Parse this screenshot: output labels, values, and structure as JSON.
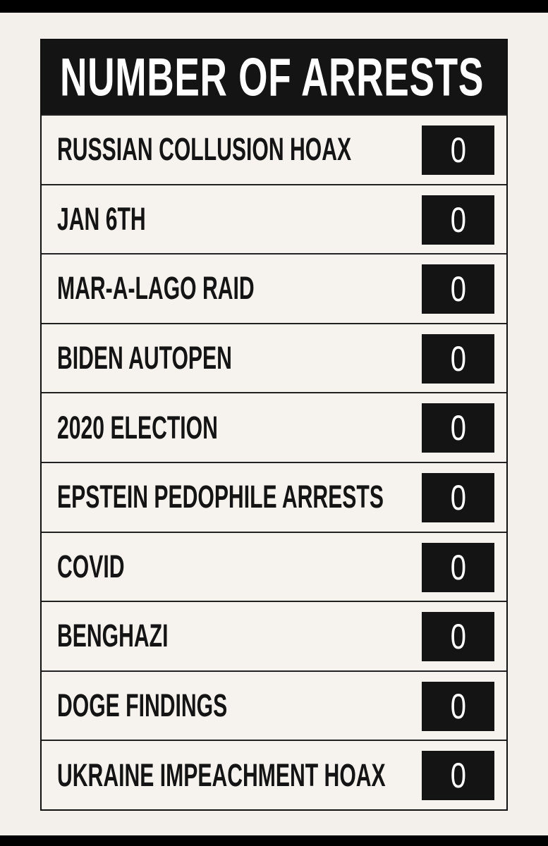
{
  "table": {
    "title": "NUMBER OF ARRESTS",
    "rows": [
      [
        "RUSSIAN COLLUSION HOAX",
        0
      ],
      [
        "JAN 6TH",
        0
      ],
      [
        "MAR-A-LAGO RAID",
        0
      ],
      [
        "BIDEN AUTOPEN",
        0
      ],
      [
        "2020 ELECTION",
        0
      ],
      [
        "EPSTEIN PEDOPHILE ARRESTS",
        0
      ],
      [
        "COVID",
        0
      ],
      [
        "BENGHAZI",
        0
      ],
      [
        "DOGE FINDINGS",
        0
      ],
      [
        "UKRAINE IMPEACHMENT HOAX",
        0
      ]
    ]
  }
}
